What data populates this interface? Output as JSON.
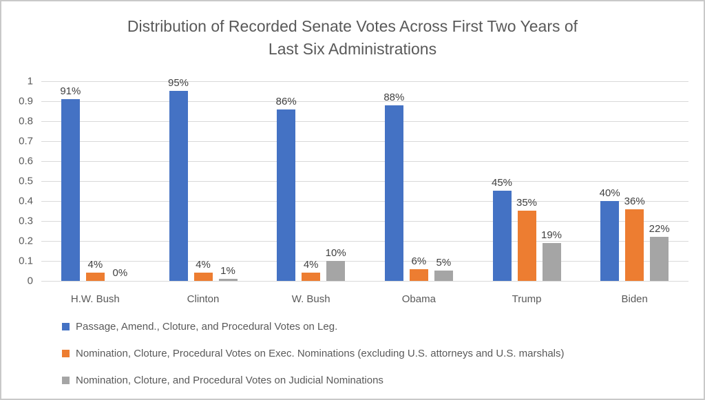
{
  "chart_data": {
    "type": "bar",
    "title": "Distribution of Recorded Senate Votes Across First Two Years of Last Six Administrations",
    "title_lines": [
      "Distribution of Recorded Senate Votes Across First Two Years of",
      "Last Six Administrations"
    ],
    "categories": [
      "H.W. Bush",
      "Clinton",
      "W. Bush",
      "Obama",
      "Trump",
      "Biden"
    ],
    "series": [
      {
        "name": "Passage, Amend., Cloture, and Procedural Votes on Leg.",
        "color": "#4472C4",
        "values": [
          0.91,
          0.95,
          0.86,
          0.88,
          0.45,
          0.4
        ],
        "labels": [
          "91%",
          "95%",
          "86%",
          "88%",
          "45%",
          "40%"
        ]
      },
      {
        "name": "Nomination, Cloture, Procedural Votes on Exec. Nominations (excluding U.S. attorneys and U.S. marshals)",
        "color": "#ED7D31",
        "values": [
          0.04,
          0.04,
          0.04,
          0.06,
          0.35,
          0.36
        ],
        "labels": [
          "4%",
          "4%",
          "4%",
          "6%",
          "35%",
          "36%"
        ]
      },
      {
        "name": "Nomination, Cloture, and Procedural Votes on Judicial Nominations",
        "color": "#A5A5A5",
        "values": [
          0.0,
          0.01,
          0.1,
          0.05,
          0.19,
          0.22
        ],
        "labels": [
          "0%",
          "1%",
          "10%",
          "5%",
          "19%",
          "22%"
        ]
      }
    ],
    "yticks": [
      "1",
      "0.9",
      "0.8",
      "0.7",
      "0.6",
      "0.5",
      "0.4",
      "0.3",
      "0.2",
      "0.1",
      "0"
    ],
    "ylim": [
      0,
      1
    ],
    "grid": true,
    "legend_position": "bottom-left",
    "colors": {
      "grid": "#d9d9d9",
      "axis_text": "#595959",
      "data_label_text": "#404040",
      "title_text": "#595959"
    }
  }
}
